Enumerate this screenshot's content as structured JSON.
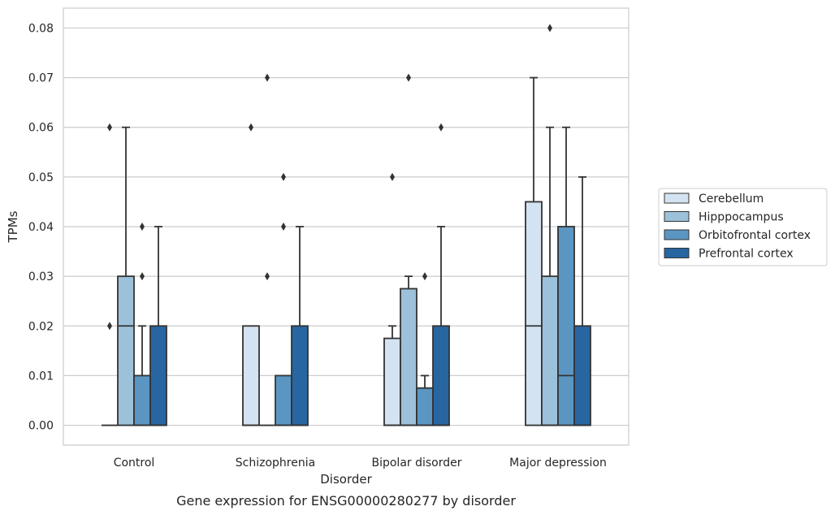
{
  "chart_data": {
    "type": "box",
    "title": "",
    "caption": "Gene expression for ENSG00000280277 by disorder",
    "xlabel": "Disorder",
    "ylabel": "TPMs",
    "ylim": [
      -0.004,
      0.084
    ],
    "yticks": [
      0.0,
      0.01,
      0.02,
      0.03,
      0.04,
      0.05,
      0.06,
      0.07,
      0.08
    ],
    "ytick_labels": [
      "0.00",
      "0.01",
      "0.02",
      "0.03",
      "0.04",
      "0.05",
      "0.06",
      "0.07",
      "0.08"
    ],
    "grid": "horizontal",
    "legend_position": "right",
    "categories": [
      "Control",
      "Schizophrenia",
      "Bipolar disorder",
      "Major depression"
    ],
    "series": [
      {
        "name": "Cerebellum",
        "color": "#d4e3f1",
        "boxes": [
          {
            "q1": 0.0,
            "median": 0.0,
            "q3": 0.0,
            "whislo": 0.0,
            "whishi": 0.0,
            "fliers": [
              0.02,
              0.06
            ]
          },
          {
            "q1": 0.0,
            "median": 0.0,
            "q3": 0.02,
            "whislo": 0.0,
            "whishi": 0.02,
            "fliers": [
              0.06
            ]
          },
          {
            "q1": 0.0,
            "median": 0.0,
            "q3": 0.0175,
            "whislo": 0.0,
            "whishi": 0.02,
            "fliers": [
              0.05
            ]
          },
          {
            "q1": 0.0,
            "median": 0.02,
            "q3": 0.045,
            "whislo": 0.0,
            "whishi": 0.07,
            "fliers": []
          }
        ]
      },
      {
        "name": "Hipppocampus",
        "color": "#9cc1da",
        "boxes": [
          {
            "q1": 0.0,
            "median": 0.02,
            "q3": 0.03,
            "whislo": 0.0,
            "whishi": 0.06,
            "fliers": []
          },
          {
            "q1": 0.0,
            "median": 0.0,
            "q3": 0.0,
            "whislo": 0.0,
            "whishi": 0.0,
            "fliers": [
              0.03,
              0.07
            ]
          },
          {
            "q1": 0.0,
            "median": 0.0,
            "q3": 0.0275,
            "whislo": 0.0,
            "whishi": 0.03,
            "fliers": [
              0.07
            ]
          },
          {
            "q1": 0.0,
            "median": 0.0,
            "q3": 0.03,
            "whislo": 0.0,
            "whishi": 0.06,
            "fliers": [
              0.08
            ]
          }
        ]
      },
      {
        "name": "Orbitofrontal cortex",
        "color": "#5b96c2",
        "boxes": [
          {
            "q1": 0.0,
            "median": 0.0,
            "q3": 0.01,
            "whislo": 0.0,
            "whishi": 0.02,
            "fliers": [
              0.03,
              0.04
            ]
          },
          {
            "q1": 0.0,
            "median": 0.0,
            "q3": 0.01,
            "whislo": 0.0,
            "whishi": 0.01,
            "fliers": [
              0.04,
              0.05
            ]
          },
          {
            "q1": 0.0,
            "median": 0.0,
            "q3": 0.0075,
            "whislo": 0.0,
            "whishi": 0.01,
            "fliers": [
              0.03
            ]
          },
          {
            "q1": 0.0,
            "median": 0.01,
            "q3": 0.04,
            "whislo": 0.0,
            "whishi": 0.06,
            "fliers": []
          }
        ]
      },
      {
        "name": "Prefrontal cortex",
        "color": "#2866a2",
        "boxes": [
          {
            "q1": 0.0,
            "median": 0.0,
            "q3": 0.02,
            "whislo": 0.0,
            "whishi": 0.04,
            "fliers": []
          },
          {
            "q1": 0.0,
            "median": 0.0,
            "q3": 0.02,
            "whislo": 0.0,
            "whishi": 0.04,
            "fliers": []
          },
          {
            "q1": 0.0,
            "median": 0.0,
            "q3": 0.02,
            "whislo": 0.0,
            "whishi": 0.04,
            "fliers": [
              0.06
            ]
          },
          {
            "q1": 0.0,
            "median": 0.0,
            "q3": 0.02,
            "whislo": 0.0,
            "whishi": 0.05,
            "fliers": []
          }
        ]
      }
    ]
  }
}
